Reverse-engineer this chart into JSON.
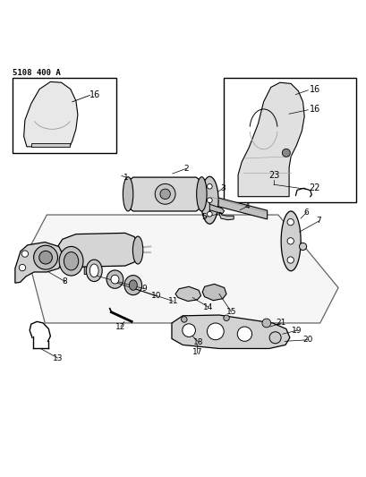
{
  "title": "5108 400 A",
  "background_color": "#ffffff",
  "line_color": "#000000",
  "fig_width": 4.1,
  "fig_height": 5.33,
  "dpi": 100
}
